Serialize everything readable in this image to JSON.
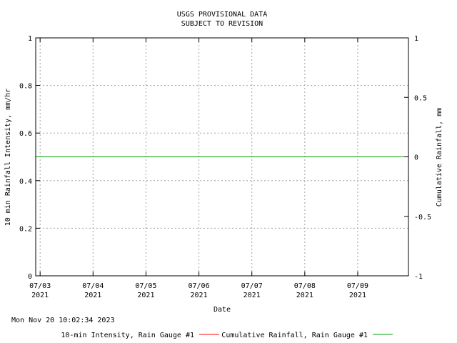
{
  "chart_data": {
    "type": "line",
    "title_lines": [
      "USGS PROVISIONAL DATA",
      "SUBJECT TO REVISION"
    ],
    "xlabel": "Date",
    "ylabel_left": "10 min Rainfall Intensity, mm/hr",
    "ylabel_right": "Cumulative Rainfall, mm",
    "left_axis": {
      "ylim": [
        0,
        1
      ],
      "ticks": [
        "0",
        "0.2",
        "0.4",
        "0.6",
        "0.8",
        "1"
      ]
    },
    "right_axis": {
      "ylim": [
        -1,
        1
      ],
      "ticks": [
        "-1",
        "-0.5",
        "0",
        "0.5",
        "1"
      ]
    },
    "x_ticks": [
      {
        "day": "07/03",
        "year": "2021"
      },
      {
        "day": "07/04",
        "year": "2021"
      },
      {
        "day": "07/05",
        "year": "2021"
      },
      {
        "day": "07/06",
        "year": "2021"
      },
      {
        "day": "07/07",
        "year": "2021"
      },
      {
        "day": "07/08",
        "year": "2021"
      },
      {
        "day": "07/09",
        "year": "2021"
      }
    ],
    "xlim": [
      "2021-07-02T22:00",
      "2021-07-09T23:00"
    ],
    "grid": true,
    "timestamp": "Mon Nov 20 10:02:34 2023",
    "series": [
      {
        "name": "10-min Intensity, Rain Gauge #1",
        "color": "#ff0000",
        "axis": "left",
        "values": []
      },
      {
        "name": "Cumulative Rainfall, Rain Gauge #1",
        "color": "#00a000",
        "axis": "right",
        "x": [
          "2021-07-02T22:00",
          "2021-07-09T23:00"
        ],
        "values": [
          0,
          0
        ]
      }
    ]
  }
}
